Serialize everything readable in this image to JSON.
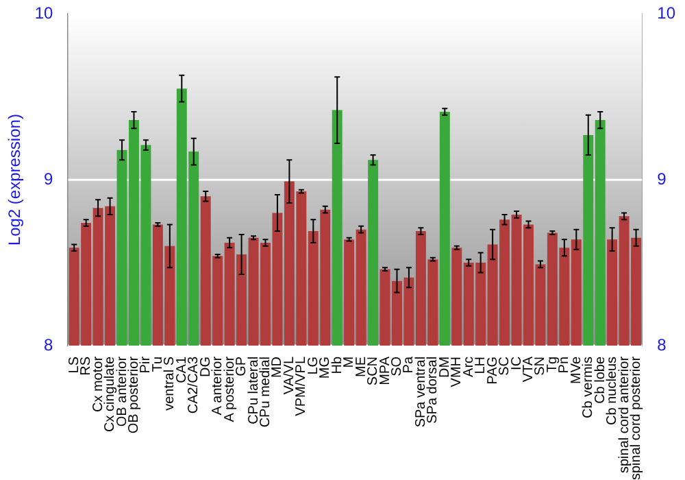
{
  "chart_data": {
    "type": "bar",
    "ylabel": "Log2 (expression)",
    "categories": [
      "LS",
      "RS",
      "Cx motor",
      "Cx cingulate",
      "OB anterior",
      "OB posterior",
      "Pir",
      "Tu",
      "ventral S",
      "CA1",
      "CA2/CA3",
      "DG",
      "A anterior",
      "A posterior",
      "GP",
      "CPu lateral",
      "CPu medial",
      "MD",
      "VA/VL",
      "VPM/VPL",
      "LG",
      "MG",
      "Hb",
      "M",
      "ME",
      "SCN",
      "MPA",
      "SO",
      "Pa",
      "SPa ventral",
      "SPa dorsal",
      "DM",
      "VMH",
      "Arc",
      "LH",
      "PAG",
      "SC",
      "IC",
      "VTA",
      "SN",
      "Tg",
      "Pn",
      "MVe",
      "Cb vermis",
      "Cb lobe",
      "Cb nucleus",
      "spinal cord anterior",
      "spinal cord posterior"
    ],
    "values": [
      8.59,
      8.74,
      8.83,
      8.84,
      9.18,
      9.36,
      9.21,
      8.73,
      8.6,
      9.55,
      9.17,
      8.9,
      8.54,
      8.62,
      8.55,
      8.65,
      8.62,
      8.8,
      8.99,
      8.93,
      8.69,
      8.82,
      9.42,
      8.64,
      8.7,
      9.12,
      8.46,
      8.39,
      8.41,
      8.69,
      8.52,
      9.41,
      8.59,
      8.5,
      8.5,
      8.61,
      8.76,
      8.79,
      8.73,
      8.49,
      8.68,
      8.59,
      8.64,
      9.27,
      9.36,
      8.64,
      8.78,
      8.65
    ],
    "errors": [
      0.02,
      0.02,
      0.05,
      0.05,
      0.06,
      0.05,
      0.03,
      0.01,
      0.13,
      0.08,
      0.08,
      0.03,
      0.01,
      0.03,
      0.12,
      0.01,
      0.02,
      0.11,
      0.13,
      0.01,
      0.07,
      0.02,
      0.2,
      0.01,
      0.02,
      0.03,
      0.01,
      0.07,
      0.06,
      0.02,
      0.01,
      0.02,
      0.01,
      0.02,
      0.06,
      0.09,
      0.03,
      0.02,
      0.02,
      0.02,
      0.01,
      0.05,
      0.06,
      0.12,
      0.05,
      0.07,
      0.02,
      0.05
    ],
    "colors": [
      "#b03c3c",
      "#b03c3c",
      "#b03c3c",
      "#b03c3c",
      "#3aa83a",
      "#3aa83a",
      "#3aa83a",
      "#b03c3c",
      "#b03c3c",
      "#3aa83a",
      "#3aa83a",
      "#b03c3c",
      "#b03c3c",
      "#b03c3c",
      "#b03c3c",
      "#b03c3c",
      "#b03c3c",
      "#b03c3c",
      "#b03c3c",
      "#b03c3c",
      "#b03c3c",
      "#b03c3c",
      "#3aa83a",
      "#b03c3c",
      "#b03c3c",
      "#3aa83a",
      "#b03c3c",
      "#b03c3c",
      "#b03c3c",
      "#b03c3c",
      "#b03c3c",
      "#3aa83a",
      "#b03c3c",
      "#b03c3c",
      "#b03c3c",
      "#b03c3c",
      "#b03c3c",
      "#b03c3c",
      "#b03c3c",
      "#b03c3c",
      "#b03c3c",
      "#b03c3c",
      "#b03c3c",
      "#3aa83a",
      "#3aa83a",
      "#b03c3c",
      "#b03c3c",
      "#b03c3c"
    ],
    "ylim": [
      8,
      10
    ],
    "yticks": [
      8,
      9,
      10
    ],
    "y2lim": [
      8,
      10
    ],
    "y2ticks": [
      8,
      9,
      10
    ],
    "grid": "y",
    "legend": false
  }
}
